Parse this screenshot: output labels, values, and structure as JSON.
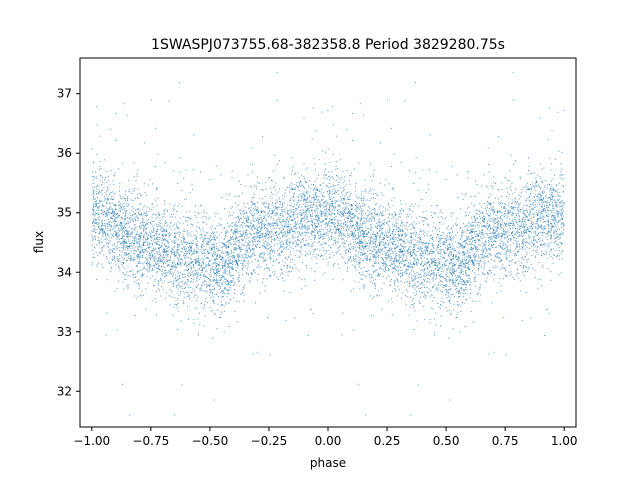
{
  "chart_data": {
    "type": "scatter",
    "title": "1SWASPJ073755.68-382358.8 Period 3829280.75s",
    "xlabel": "phase",
    "ylabel": "flux",
    "xlim": [
      -1.05,
      1.05
    ],
    "ylim": [
      31.4,
      37.6
    ],
    "xticks": [
      -1.0,
      -0.75,
      -0.5,
      -0.25,
      0.0,
      0.25,
      0.5,
      0.75,
      1.0
    ],
    "xtick_labels": [
      "−1.00",
      "−0.75",
      "−0.50",
      "−0.25",
      "0.00",
      "0.25",
      "0.50",
      "0.75",
      "1.00"
    ],
    "yticks": [
      32,
      33,
      34,
      35,
      36,
      37
    ],
    "ytick_labels": [
      "32",
      "33",
      "34",
      "35",
      "36",
      "37"
    ],
    "grid": false,
    "legend": "none",
    "marker_color": "#1f77b4",
    "series": [
      {
        "phase_profile": [
          [
            0.0,
            35.0
          ],
          [
            0.05,
            34.95
          ],
          [
            0.1,
            34.75
          ],
          [
            0.15,
            34.6
          ],
          [
            0.2,
            34.55
          ],
          [
            0.25,
            34.45
          ],
          [
            0.3,
            34.4
          ],
          [
            0.35,
            34.3
          ],
          [
            0.4,
            34.25
          ],
          [
            0.45,
            34.2
          ],
          [
            0.5,
            34.15
          ],
          [
            0.55,
            34.1
          ],
          [
            0.6,
            34.35
          ],
          [
            0.65,
            34.45
          ],
          [
            0.7,
            34.65
          ],
          [
            0.75,
            34.7
          ],
          [
            0.8,
            34.75
          ],
          [
            0.85,
            34.85
          ],
          [
            0.9,
            34.9
          ],
          [
            0.95,
            34.95
          ],
          [
            1.0,
            35.0
          ]
        ],
        "scatter_sigma": 0.4,
        "range": [
          31.6,
          37.6
        ]
      }
    ]
  }
}
